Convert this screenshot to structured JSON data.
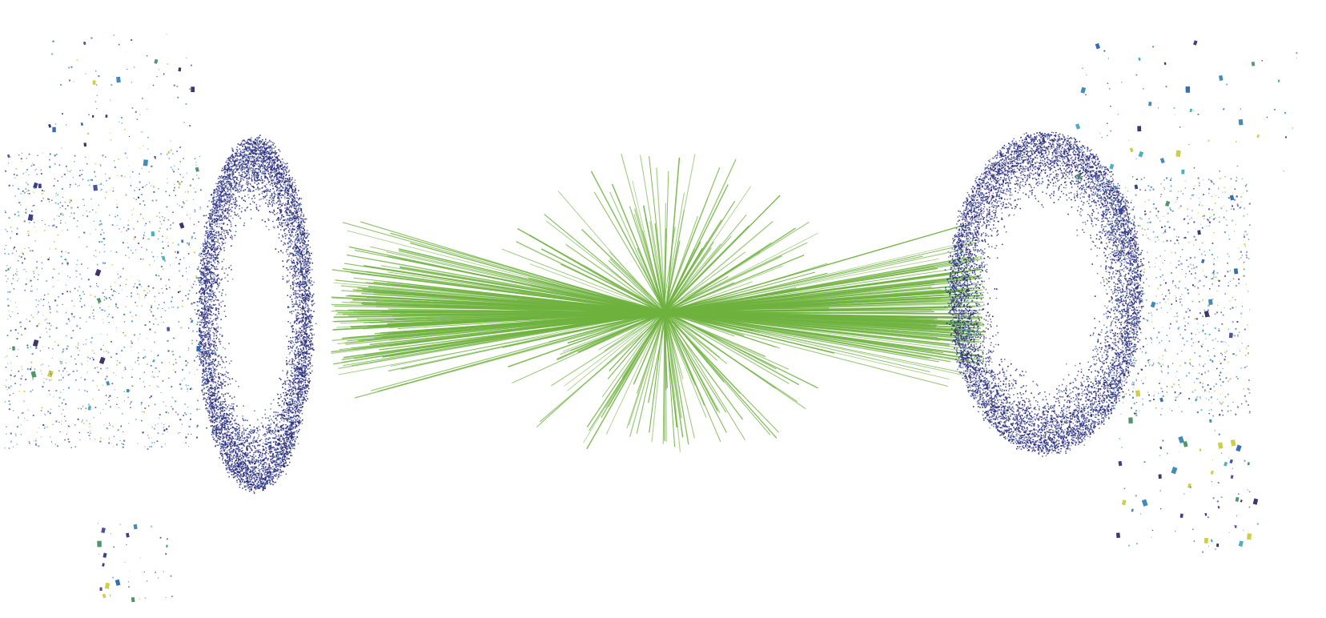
{
  "scene": {
    "background": "#ffffff",
    "track_color": "#6fb23f",
    "hit_colors": [
      "#2a2a7a",
      "#3a3f99",
      "#1f5fa8",
      "#2d7fb0",
      "#35a8b8",
      "#3c8c5a",
      "#c9c93a",
      "#2b1f5e"
    ],
    "detector_left": "ring-disk-left",
    "detector_right": "ring-disk-right",
    "tracks": "radial-jet-bundle"
  }
}
